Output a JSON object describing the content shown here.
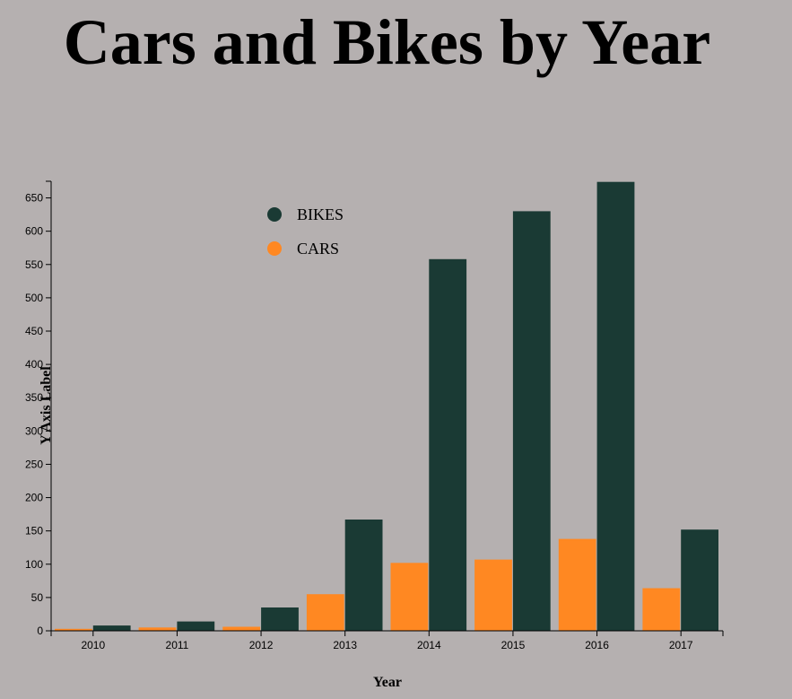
{
  "page": {
    "title": "Cars and Bikes by Year",
    "background": "#b5b0b0"
  },
  "chart_data": {
    "type": "bar",
    "title": "Cars and Bikes by Year",
    "xlabel": "Year",
    "ylabel": "Y Axis Label",
    "categories": [
      "2010",
      "2011",
      "2012",
      "2013",
      "2014",
      "2015",
      "2016",
      "2017"
    ],
    "series": [
      {
        "name": "CARS",
        "color": "#ff8822",
        "values": [
          3,
          5,
          6,
          55,
          102,
          107,
          138,
          64
        ]
      },
      {
        "name": "BIKES",
        "color": "#1a3a34",
        "values": [
          8,
          14,
          35,
          167,
          558,
          630,
          674,
          152
        ]
      }
    ],
    "ylim": [
      0,
      675
    ],
    "yticks": [
      0,
      50,
      100,
      150,
      200,
      250,
      300,
      350,
      400,
      450,
      500,
      550,
      600,
      650
    ],
    "grid": false,
    "legend": {
      "placement": "top-left",
      "order": [
        "BIKES",
        "CARS"
      ]
    }
  }
}
